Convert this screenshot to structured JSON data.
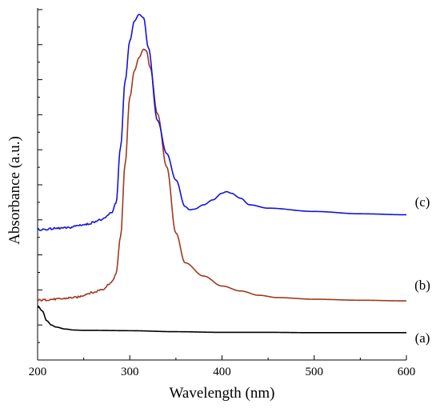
{
  "chart_data": {
    "type": "line",
    "xlabel": "Wavelength (nm)",
    "ylabel": "Absorbance (a.u.)",
    "xlim": [
      200,
      600
    ],
    "ylim": [
      0,
      1
    ],
    "x_ticks": [
      "200",
      "300",
      "400",
      "500",
      "600"
    ],
    "y_tick_labels_shown": false,
    "grid": false,
    "series": [
      {
        "name": "(a)",
        "color": "#000000",
        "x": [
          200,
          205,
          210,
          215,
          220,
          230,
          240,
          250,
          260,
          300,
          350,
          400,
          450,
          500,
          550,
          600
        ],
        "y": [
          0.12,
          0.105,
          0.075,
          0.062,
          0.056,
          0.05,
          0.047,
          0.046,
          0.046,
          0.045,
          0.042,
          0.04,
          0.04,
          0.039,
          0.039,
          0.039
        ]
      },
      {
        "name": "(b)",
        "color": "#A0391E",
        "x": [
          200,
          220,
          240,
          260,
          270,
          280,
          285,
          290,
          295,
          300,
          305,
          310,
          315,
          318,
          322,
          330,
          340,
          350,
          360,
          380,
          400,
          420,
          440,
          460,
          500,
          550,
          600
        ],
        "y": [
          0.137,
          0.14,
          0.145,
          0.16,
          0.17,
          0.19,
          0.215,
          0.33,
          0.55,
          0.75,
          0.83,
          0.87,
          0.895,
          0.89,
          0.84,
          0.7,
          0.54,
          0.34,
          0.25,
          0.21,
          0.18,
          0.165,
          0.152,
          0.145,
          0.14,
          0.137,
          0.135
        ]
      },
      {
        "name": "(c)",
        "color": "#1414D8",
        "x": [
          200,
          230,
          250,
          270,
          280,
          285,
          290,
          295,
          300,
          305,
          310,
          315,
          320,
          330,
          340,
          350,
          360,
          365,
          370,
          380,
          390,
          400,
          405,
          410,
          420,
          430,
          450,
          500,
          550,
          600
        ],
        "y": [
          0.35,
          0.355,
          0.365,
          0.38,
          0.4,
          0.43,
          0.6,
          0.8,
          0.92,
          0.98,
          1.0,
          0.99,
          0.9,
          0.68,
          0.58,
          0.5,
          0.42,
          0.41,
          0.412,
          0.425,
          0.44,
          0.46,
          0.465,
          0.46,
          0.445,
          0.425,
          0.415,
          0.405,
          0.398,
          0.395
        ]
      }
    ]
  }
}
